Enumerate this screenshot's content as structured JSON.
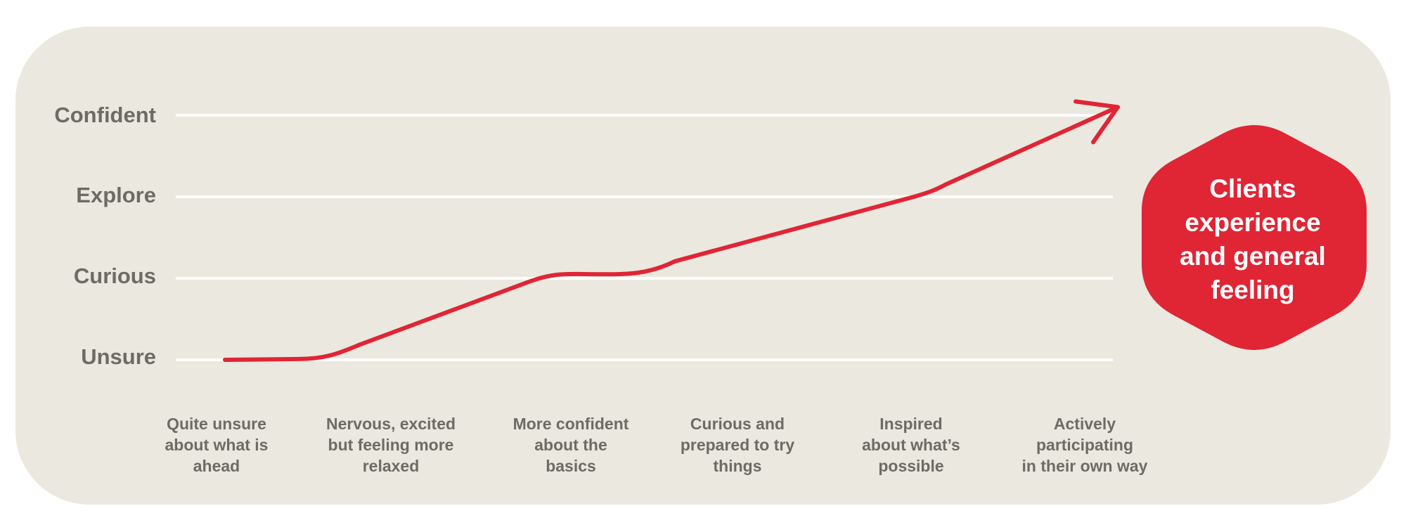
{
  "chart_data": {
    "type": "line",
    "title": "",
    "xlabel": "",
    "ylabel": "",
    "y_levels": [
      "Unsure",
      "Curious",
      "Explore",
      "Confident"
    ],
    "ylim": [
      0,
      3
    ],
    "categories": [
      [
        "Quite unsure",
        "about what is",
        "ahead"
      ],
      [
        "Nervous, excited",
        "but feeling more",
        "relaxed"
      ],
      [
        "More confident",
        "about the",
        "basics"
      ],
      [
        "Curious and",
        "prepared to try",
        "things"
      ],
      [
        "Inspired",
        "about what’s",
        "possible"
      ],
      [
        "Actively",
        "participating",
        "in their own way"
      ]
    ],
    "series": [
      {
        "name": "Clients experience and general feeling",
        "values": [
          0,
          0.2,
          1.05,
          1.5,
          2.05,
          3.1
        ]
      }
    ],
    "line_color": "#e02535",
    "grid": true,
    "annotation": [
      "Clients",
      "experience",
      "and general",
      "feeling"
    ]
  }
}
